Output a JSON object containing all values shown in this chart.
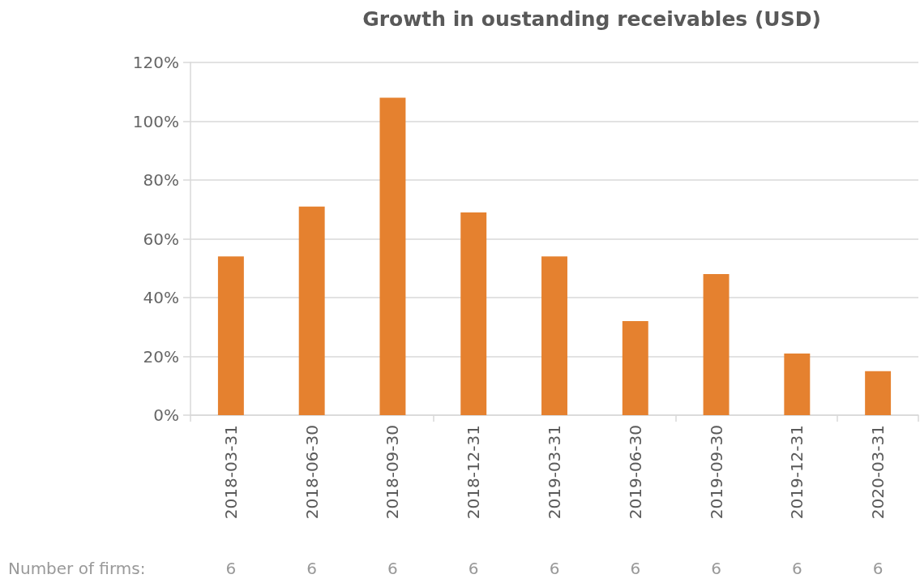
{
  "chart_data": {
    "type": "bar",
    "title": "Growth in oustanding receivables (USD)",
    "categories": [
      "2018-03-31",
      "2018-06-30",
      "2018-09-30",
      "2018-12-31",
      "2019-03-31",
      "2019-06-30",
      "2019-09-30",
      "2019-12-31",
      "2020-03-31"
    ],
    "values": [
      54,
      71,
      108,
      69,
      54,
      32,
      48,
      21,
      15
    ],
    "color": "#e5812f",
    "ylim": [
      0,
      120
    ],
    "yticks": [
      {
        "value": 0,
        "label": "0%"
      },
      {
        "value": 20,
        "label": "20%"
      },
      {
        "value": 40,
        "label": "40%"
      },
      {
        "value": 60,
        "label": "60%"
      },
      {
        "value": 80,
        "label": "80%"
      },
      {
        "value": 100,
        "label": "100%"
      },
      {
        "value": 120,
        "label": "120%"
      }
    ],
    "grid": "y",
    "annotations": [
      "Number of firms:",
      "6",
      "6",
      "6",
      "6",
      "6",
      "6",
      "6",
      "6",
      "6"
    ]
  }
}
